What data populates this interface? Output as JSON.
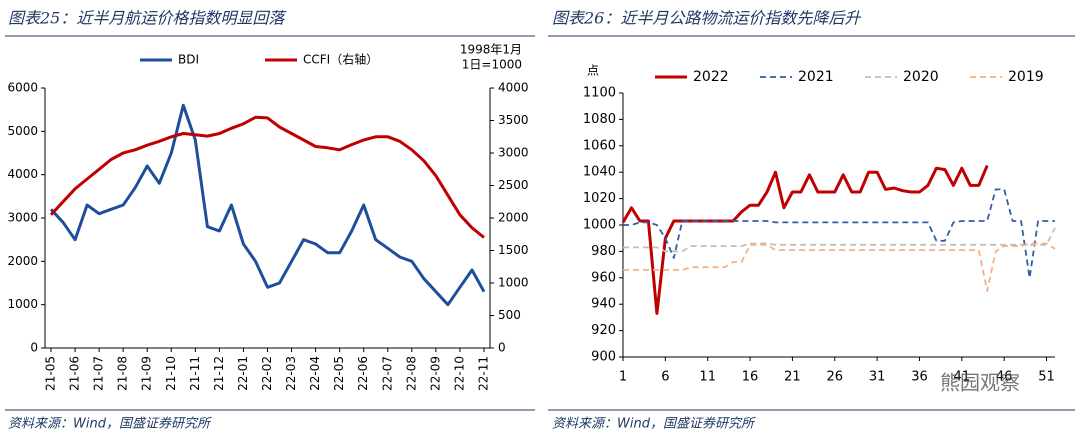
{
  "chart_data": [
    {
      "type": "line",
      "title": "图表25：近半月航运价格指数明显回落",
      "source": "资料来源：Wind，国盛证券研究所",
      "annotation": [
        "1998年1月",
        "1日=1000"
      ],
      "categories": [
        "21-05",
        null,
        "21-06",
        null,
        "21-07",
        null,
        "21-08",
        null,
        "21-09",
        null,
        "21-10",
        null,
        "21-11",
        null,
        "21-12",
        null,
        "22-01",
        null,
        "22-02",
        null,
        "22-03",
        null,
        "22-04",
        null,
        "22-05",
        null,
        "22-06",
        null,
        "22-07",
        null,
        "22-08",
        null,
        "22-09",
        null,
        "22-10",
        null,
        "22-11"
      ],
      "series": [
        {
          "name": "BDI",
          "color": "#1f4e9c",
          "values": [
            3200,
            2900,
            2500,
            3300,
            3100,
            3200,
            3300,
            3700,
            4200,
            3800,
            4500,
            5600,
            4800,
            2800,
            2700,
            3300,
            2400,
            2000,
            1400,
            1500,
            2000,
            2500,
            2400,
            2200,
            2200,
            2700,
            3300,
            2500,
            2300,
            2100,
            2000,
            1600,
            1300,
            1000,
            1400,
            1800,
            1300
          ]
        },
        {
          "name": "CCFI（右轴）",
          "color": "#c00000",
          "axis": "y2",
          "values": [
            2050,
            2250,
            2450,
            2600,
            2750,
            2900,
            3000,
            3050,
            3120,
            3180,
            3250,
            3300,
            3280,
            3260,
            3300,
            3380,
            3450,
            3550,
            3540,
            3400,
            3300,
            3200,
            3100,
            3080,
            3050,
            3130,
            3200,
            3250,
            3250,
            3180,
            3050,
            2880,
            2650,
            2350,
            2050,
            1850,
            1700
          ]
        }
      ],
      "ylim": [
        0,
        6000
      ],
      "yticks": [
        0,
        1000,
        2000,
        3000,
        4000,
        5000,
        6000
      ],
      "y2lim": [
        0,
        4000
      ],
      "y2ticks": [
        0,
        500,
        1000,
        1500,
        2000,
        2500,
        3000,
        3500,
        4000
      ],
      "grid": false,
      "legend": "top"
    },
    {
      "type": "line",
      "title": "图表26：近半月公路物流运价指数先降后升",
      "source": "资料来源：Wind，国盛证券研究所",
      "y_label": "点",
      "watermark": "熊园观察",
      "x": [
        1,
        2,
        3,
        4,
        5,
        6,
        7,
        8,
        9,
        10,
        11,
        12,
        13,
        14,
        15,
        16,
        17,
        18,
        19,
        20,
        21,
        22,
        23,
        24,
        25,
        26,
        27,
        28,
        29,
        30,
        31,
        32,
        33,
        34,
        35,
        36,
        37,
        38,
        39,
        40,
        41,
        42,
        43,
        44,
        45,
        46,
        47,
        48,
        49,
        50,
        51,
        52
      ],
      "series": [
        {
          "name": "2022",
          "color": "#c00000",
          "dashed": false,
          "values": [
            1002,
            1013,
            1003,
            1003,
            933,
            990,
            1003,
            1003,
            1003,
            1003,
            1003,
            1003,
            1003,
            1003,
            1010,
            1015,
            1015,
            1025,
            1040,
            1013,
            1025,
            1025,
            1038,
            1025,
            1025,
            1025,
            1038,
            1025,
            1025,
            1040,
            1040,
            1027,
            1028,
            1026,
            1025,
            1025,
            1030,
            1043,
            1042,
            1030,
            1043,
            1030,
            1030,
            1045,
            null,
            null,
            null,
            null,
            null,
            null,
            null,
            null
          ]
        },
        {
          "name": "2021",
          "color": "#2e5fa8",
          "dashed": true,
          "values": [
            1000,
            1000,
            1002,
            1002,
            1000,
            990,
            975,
            1003,
            1003,
            1003,
            1003,
            1003,
            1003,
            1003,
            1003,
            1003,
            1003,
            1003,
            1002,
            1002,
            1002,
            1002,
            1002,
            1002,
            1002,
            1002,
            1002,
            1002,
            1002,
            1002,
            1002,
            1002,
            1002,
            1002,
            1002,
            1002,
            1002,
            988,
            988,
            1002,
            1003,
            1003,
            1003,
            1003,
            1027,
            1027,
            1003,
            1003,
            960,
            1003,
            1003,
            1003
          ]
        },
        {
          "name": "2020",
          "color": "#bfbfbf",
          "dashed": true,
          "values": [
            983,
            983,
            983,
            983,
            983,
            980,
            980,
            980,
            984,
            984,
            984,
            984,
            984,
            984,
            984,
            986,
            986,
            986,
            985,
            985,
            985,
            985,
            985,
            985,
            985,
            985,
            985,
            985,
            985,
            985,
            985,
            985,
            985,
            985,
            985,
            985,
            985,
            985,
            985,
            985,
            985,
            985,
            985,
            985,
            985,
            985,
            985,
            985,
            985,
            985,
            985,
            998
          ]
        },
        {
          "name": "2019",
          "color": "#f4b183",
          "dashed": true,
          "values": [
            966,
            966,
            966,
            966,
            966,
            966,
            966,
            966,
            968,
            968,
            968,
            968,
            968,
            972,
            972,
            985,
            985,
            985,
            981,
            981,
            981,
            981,
            981,
            981,
            981,
            981,
            981,
            981,
            981,
            981,
            981,
            981,
            981,
            981,
            981,
            981,
            981,
            981,
            981,
            981,
            981,
            981,
            981,
            950,
            980,
            984,
            984,
            984,
            986,
            986,
            986,
            982
          ]
        }
      ],
      "xlim": [
        1,
        52
      ],
      "xticks": [
        1,
        6,
        11,
        16,
        21,
        26,
        31,
        36,
        41,
        46,
        51
      ],
      "ylim": [
        900,
        1100
      ],
      "yticks": [
        900,
        920,
        940,
        960,
        980,
        1000,
        1020,
        1040,
        1060,
        1080,
        1100
      ],
      "grid": false,
      "legend": "top"
    }
  ]
}
